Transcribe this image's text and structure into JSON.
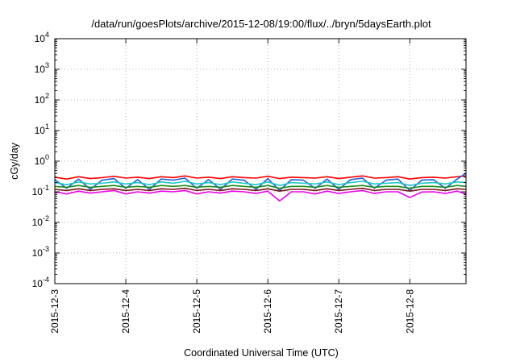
{
  "chart_data": {
    "type": "line",
    "title": "/data/run/goesPlots/archive/2015-12-08/19:00/flux/../bryn/5daysEarth.plot",
    "xlabel": "Coordinated Universal Time (UTC)",
    "ylabel": "cGy/day",
    "yscale": "log",
    "ylim": [
      0.0001,
      10000
    ],
    "xlim": [
      "2015-12-03",
      "2015-12-08T19:00"
    ],
    "grid": true,
    "legend": "none",
    "y_tick_labels": [
      {
        "value": 0.0001,
        "base": "10",
        "exp": "-4"
      },
      {
        "value": 0.001,
        "base": "10",
        "exp": "-3"
      },
      {
        "value": 0.01,
        "base": "10",
        "exp": "-2"
      },
      {
        "value": 0.1,
        "base": "10",
        "exp": "-1"
      },
      {
        "value": 1,
        "base": "10",
        "exp": "0"
      },
      {
        "value": 10,
        "base": "10",
        "exp": "1"
      },
      {
        "value": 100,
        "base": "10",
        "exp": "2"
      },
      {
        "value": 1000,
        "base": "10",
        "exp": "3"
      },
      {
        "value": 10000,
        "base": "10",
        "exp": "4"
      }
    ],
    "x_tick_labels": [
      "2015-12-3",
      "2015-12-4",
      "2015-12-5",
      "2015-12-6",
      "2015-12-7",
      "2015-12-8"
    ],
    "x": [
      "2015-12-03T00:00",
      "2015-12-03T04:00",
      "2015-12-03T08:00",
      "2015-12-03T12:00",
      "2015-12-03T16:00",
      "2015-12-03T20:00",
      "2015-12-04T00:00",
      "2015-12-04T04:00",
      "2015-12-04T08:00",
      "2015-12-04T12:00",
      "2015-12-04T16:00",
      "2015-12-04T20:00",
      "2015-12-05T00:00",
      "2015-12-05T04:00",
      "2015-12-05T08:00",
      "2015-12-05T12:00",
      "2015-12-05T16:00",
      "2015-12-05T20:00",
      "2015-12-06T00:00",
      "2015-12-06T04:00",
      "2015-12-06T08:00",
      "2015-12-06T12:00",
      "2015-12-06T16:00",
      "2015-12-06T20:00",
      "2015-12-07T00:00",
      "2015-12-07T04:00",
      "2015-12-07T08:00",
      "2015-12-07T12:00",
      "2015-12-07T16:00",
      "2015-12-07T20:00",
      "2015-12-08T00:00",
      "2015-12-08T04:00",
      "2015-12-08T08:00",
      "2015-12-08T12:00",
      "2015-12-08T16:00",
      "2015-12-08T19:00"
    ],
    "series": [
      {
        "color": "#ff0000",
        "values": [
          0.3,
          0.26,
          0.31,
          0.27,
          0.29,
          0.32,
          0.28,
          0.3,
          0.27,
          0.31,
          0.29,
          0.33,
          0.28,
          0.3,
          0.27,
          0.31,
          0.29,
          0.28,
          0.32,
          0.27,
          0.3,
          0.29,
          0.28,
          0.31,
          0.27,
          0.3,
          0.33,
          0.28,
          0.29,
          0.31,
          0.26,
          0.29,
          0.3,
          0.28,
          0.31,
          0.33
        ]
      },
      {
        "color": "#1f5fe0",
        "values": [
          0.25,
          0.13,
          0.26,
          0.12,
          0.24,
          0.27,
          0.13,
          0.25,
          0.12,
          0.26,
          0.24,
          0.28,
          0.13,
          0.25,
          0.12,
          0.26,
          0.24,
          0.12,
          0.27,
          0.11,
          0.25,
          0.24,
          0.13,
          0.26,
          0.12,
          0.25,
          0.28,
          0.13,
          0.24,
          0.26,
          0.11,
          0.24,
          0.25,
          0.13,
          0.26,
          0.4
        ]
      },
      {
        "color": "#20c8c8",
        "values": [
          0.2,
          0.17,
          0.21,
          0.18,
          0.19,
          0.21,
          0.18,
          0.2,
          0.17,
          0.21,
          0.19,
          0.22,
          0.18,
          0.2,
          0.17,
          0.21,
          0.19,
          0.17,
          0.21,
          0.16,
          0.2,
          0.19,
          0.18,
          0.21,
          0.17,
          0.2,
          0.22,
          0.18,
          0.19,
          0.2,
          0.16,
          0.19,
          0.2,
          0.18,
          0.21,
          0.2
        ]
      },
      {
        "color": "#1a8c1a",
        "values": [
          0.15,
          0.14,
          0.16,
          0.14,
          0.15,
          0.16,
          0.14,
          0.15,
          0.14,
          0.16,
          0.15,
          0.16,
          0.14,
          0.15,
          0.14,
          0.16,
          0.15,
          0.14,
          0.16,
          0.13,
          0.15,
          0.15,
          0.14,
          0.16,
          0.14,
          0.15,
          0.16,
          0.14,
          0.15,
          0.15,
          0.13,
          0.15,
          0.15,
          0.14,
          0.16,
          0.15
        ]
      },
      {
        "color": "#7a1414",
        "values": [
          0.12,
          0.11,
          0.125,
          0.11,
          0.12,
          0.125,
          0.11,
          0.12,
          0.11,
          0.125,
          0.12,
          0.13,
          0.11,
          0.12,
          0.11,
          0.125,
          0.12,
          0.11,
          0.125,
          0.105,
          0.12,
          0.12,
          0.11,
          0.125,
          0.11,
          0.12,
          0.13,
          0.11,
          0.12,
          0.12,
          0.105,
          0.12,
          0.12,
          0.11,
          0.125,
          0.12
        ]
      },
      {
        "color": "#ee00ee",
        "values": [
          0.1,
          0.085,
          0.105,
          0.09,
          0.1,
          0.11,
          0.085,
          0.1,
          0.09,
          0.105,
          0.1,
          0.11,
          0.085,
          0.1,
          0.09,
          0.105,
          0.1,
          0.088,
          0.105,
          0.05,
          0.1,
          0.1,
          0.085,
          0.105,
          0.088,
          0.1,
          0.11,
          0.088,
          0.1,
          0.1,
          0.065,
          0.098,
          0.1,
          0.088,
          0.105,
          0.085
        ]
      }
    ]
  }
}
